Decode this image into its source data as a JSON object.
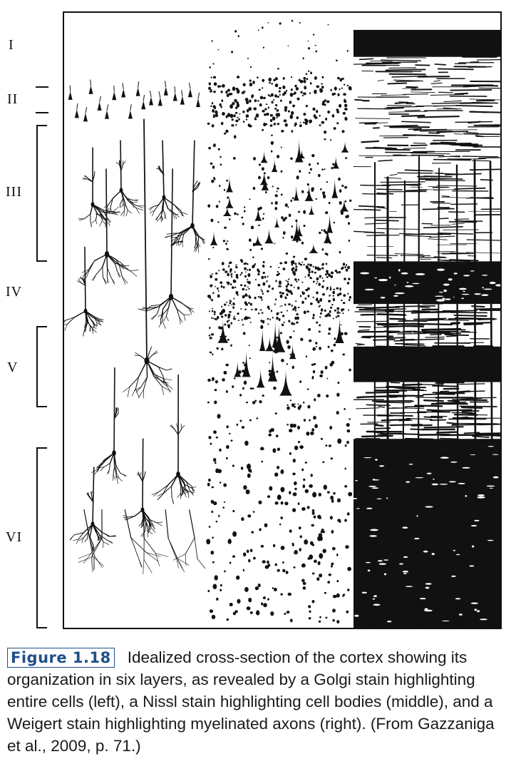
{
  "figure": {
    "layers": [
      {
        "label": "I"
      },
      {
        "label": "II"
      },
      {
        "label": "III"
      },
      {
        "label": "IV"
      },
      {
        "label": "V"
      },
      {
        "label": "VI"
      }
    ],
    "panels": [
      {
        "name": "golgi-stain-panel"
      },
      {
        "name": "nissl-stain-panel"
      },
      {
        "name": "weigert-stain-panel"
      }
    ],
    "colors": {
      "ink": "#111111",
      "figure_label": "#1f4f8a",
      "caption_text": "#1a1a1a"
    }
  },
  "caption": {
    "figure_label": "Figure 1.18",
    "text": "Idealized cross-section of the cortex showing its organization in six layers, as revealed by a Golgi stain highlighting entire cells (left), a Nissl stain highlighting cell bodies (middle), and a Weigert stain highlighting myelinated axons (right). (From Gazzaniga et al., 2009, p. 71.)"
  }
}
